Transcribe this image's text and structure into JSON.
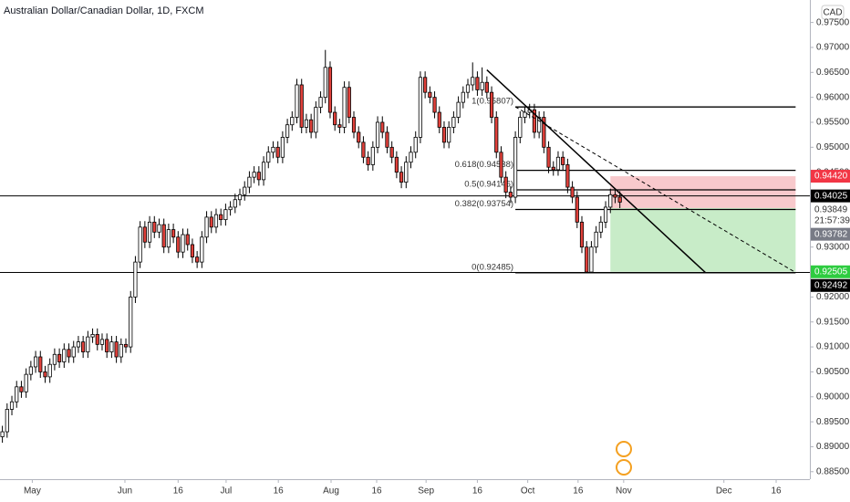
{
  "chart_data": {
    "type": "candlestick",
    "title": "Australian Dollar/Canadian Dollar, 1D, FXCM",
    "currency": "CAD",
    "open": [
      0.892,
      0.893,
      0.8975,
      0.899,
      0.902,
      0.901,
      0.9045,
      0.906,
      0.908,
      0.905,
      0.904,
      0.9065,
      0.9085,
      0.907,
      0.9095,
      0.908,
      0.91,
      0.911,
      0.909,
      0.912,
      0.9125,
      0.9105,
      0.9115,
      0.909,
      0.911,
      0.908,
      0.9105,
      0.91,
      0.92,
      0.927,
      0.934,
      0.931,
      0.935,
      0.933,
      0.9345,
      0.93,
      0.9335,
      0.932,
      0.929,
      0.9325,
      0.9305,
      0.928,
      0.927,
      0.932,
      0.936,
      0.934,
      0.9365,
      0.9355,
      0.9375,
      0.938,
      0.9395,
      0.9405,
      0.942,
      0.944,
      0.945,
      0.9435,
      0.947,
      0.949,
      0.95,
      0.948,
      0.952,
      0.9545,
      0.956,
      0.9625,
      0.954,
      0.9555,
      0.953,
      0.958,
      0.96,
      0.966,
      0.957,
      0.9545,
      0.954,
      0.962,
      0.956,
      0.953,
      0.951,
      0.948,
      0.9465,
      0.95,
      0.955,
      0.953,
      0.95,
      0.948,
      0.945,
      0.943,
      0.947,
      0.949,
      0.952,
      0.964,
      0.961,
      0.96,
      0.957,
      0.954,
      0.951,
      0.954,
      0.956,
      0.959,
      0.961,
      0.9625,
      0.964,
      0.9615,
      0.963,
      0.961,
      0.956,
      0.949,
      0.944,
      0.941,
      0.94,
      0.952,
      0.956,
      0.957,
      0.9575,
      0.953,
      0.956,
      0.95,
      0.946,
      0.9455,
      0.948,
      0.9465,
      0.942,
      0.94,
      0.935,
      0.93,
      0.925,
      0.93,
      0.933,
      0.935,
      0.938,
      0.9405,
      0.94
    ],
    "high": [
      0.8942,
      0.8987,
      0.9002,
      0.9032,
      0.9032,
      0.9057,
      0.9072,
      0.9092,
      0.9092,
      0.9062,
      0.9077,
      0.9097,
      0.9097,
      0.9107,
      0.9107,
      0.9112,
      0.9122,
      0.9122,
      0.9132,
      0.9137,
      0.9137,
      0.9127,
      0.9127,
      0.9122,
      0.9122,
      0.9117,
      0.9117,
      0.9212,
      0.9282,
      0.9352,
      0.9352,
      0.9362,
      0.9362,
      0.9357,
      0.9357,
      0.9347,
      0.9347,
      0.9332,
      0.9337,
      0.9337,
      0.9317,
      0.9292,
      0.9332,
      0.9372,
      0.9372,
      0.9377,
      0.9377,
      0.9387,
      0.9392,
      0.9407,
      0.9417,
      0.9432,
      0.9452,
      0.9462,
      0.9462,
      0.9482,
      0.9502,
      0.9512,
      0.9512,
      0.9532,
      0.9557,
      0.9572,
      0.9637,
      0.9637,
      0.9567,
      0.9567,
      0.9592,
      0.9612,
      0.9695,
      0.9672,
      0.9582,
      0.9557,
      0.9632,
      0.9632,
      0.9572,
      0.9542,
      0.9522,
      0.9492,
      0.9512,
      0.9562,
      0.9562,
      0.9542,
      0.9512,
      0.9492,
      0.9462,
      0.9482,
      0.9502,
      0.9532,
      0.9652,
      0.9652,
      0.9622,
      0.9612,
      0.9582,
      0.9552,
      0.9552,
      0.9572,
      0.9602,
      0.9622,
      0.9637,
      0.967,
      0.9652,
      0.966,
      0.9642,
      0.9622,
      0.9572,
      0.9502,
      0.9452,
      0.9422,
      0.9532,
      0.9572,
      0.9582,
      0.9587,
      0.9587,
      0.9572,
      0.9572,
      0.9512,
      0.9472,
      0.9492,
      0.9492,
      0.9477,
      0.9432,
      0.9412,
      0.9362,
      0.9312,
      0.9312,
      0.9342,
      0.9362,
      0.9392,
      0.9417,
      0.9417,
      0.9412
    ],
    "low": [
      0.8908,
      0.8918,
      0.8963,
      0.8978,
      0.8998,
      0.8998,
      0.9033,
      0.9048,
      0.9038,
      0.9028,
      0.9028,
      0.9053,
      0.9058,
      0.9058,
      0.9068,
      0.9068,
      0.9088,
      0.9078,
      0.9078,
      0.9108,
      0.9093,
      0.9093,
      0.9078,
      0.9078,
      0.9068,
      0.9068,
      0.9088,
      0.9088,
      0.9188,
      0.9258,
      0.9298,
      0.9298,
      0.9318,
      0.9318,
      0.9288,
      0.9288,
      0.9308,
      0.9278,
      0.9278,
      0.9293,
      0.9268,
      0.9258,
      0.9258,
      0.9308,
      0.9328,
      0.9328,
      0.9343,
      0.9343,
      0.9363,
      0.9368,
      0.9383,
      0.9393,
      0.9408,
      0.9428,
      0.9423,
      0.9423,
      0.9458,
      0.9478,
      0.9468,
      0.9468,
      0.9508,
      0.9533,
      0.9548,
      0.9528,
      0.9528,
      0.9518,
      0.9518,
      0.9568,
      0.9588,
      0.9558,
      0.9533,
      0.9528,
      0.9528,
      0.9548,
      0.9518,
      0.9498,
      0.9468,
      0.9453,
      0.9453,
      0.9488,
      0.9518,
      0.9488,
      0.9468,
      0.9438,
      0.9418,
      0.9418,
      0.9458,
      0.9478,
      0.9508,
      0.9598,
      0.9588,
      0.9558,
      0.9528,
      0.9498,
      0.9498,
      0.9528,
      0.9548,
      0.9578,
      0.9598,
      0.9613,
      0.9603,
      0.9603,
      0.9598,
      0.9548,
      0.9478,
      0.9428,
      0.9398,
      0.9388,
      0.9388,
      0.9508,
      0.9548,
      0.9558,
      0.9518,
      0.9518,
      0.9488,
      0.9448,
      0.9443,
      0.9443,
      0.9453,
      0.9408,
      0.9388,
      0.9338,
      0.9288,
      0.9249,
      0.9249,
      0.9288,
      0.9318,
      0.9338,
      0.9368,
      0.9388,
      0.9378
    ],
    "close": [
      0.893,
      0.8975,
      0.899,
      0.902,
      0.901,
      0.9045,
      0.906,
      0.908,
      0.905,
      0.904,
      0.9065,
      0.9085,
      0.907,
      0.9095,
      0.908,
      0.91,
      0.911,
      0.909,
      0.912,
      0.9125,
      0.9105,
      0.9115,
      0.909,
      0.911,
      0.908,
      0.9105,
      0.91,
      0.92,
      0.927,
      0.934,
      0.931,
      0.935,
      0.933,
      0.9345,
      0.93,
      0.9335,
      0.932,
      0.929,
      0.9325,
      0.9305,
      0.928,
      0.927,
      0.932,
      0.936,
      0.934,
      0.9365,
      0.9355,
      0.9375,
      0.938,
      0.9395,
      0.9405,
      0.942,
      0.944,
      0.945,
      0.9435,
      0.947,
      0.949,
      0.95,
      0.948,
      0.952,
      0.9545,
      0.956,
      0.9625,
      0.954,
      0.9555,
      0.953,
      0.958,
      0.96,
      0.966,
      0.957,
      0.9545,
      0.954,
      0.962,
      0.956,
      0.953,
      0.951,
      0.948,
      0.9465,
      0.95,
      0.955,
      0.953,
      0.95,
      0.948,
      0.945,
      0.943,
      0.947,
      0.949,
      0.952,
      0.964,
      0.961,
      0.96,
      0.957,
      0.954,
      0.951,
      0.954,
      0.956,
      0.959,
      0.961,
      0.9625,
      0.964,
      0.9615,
      0.963,
      0.961,
      0.956,
      0.949,
      0.944,
      0.941,
      0.94,
      0.952,
      0.956,
      0.957,
      0.9575,
      0.953,
      0.956,
      0.95,
      0.946,
      0.9455,
      0.948,
      0.9465,
      0.942,
      0.94,
      0.935,
      0.93,
      0.925,
      0.93,
      0.933,
      0.935,
      0.938,
      0.9405,
      0.94,
      0.939
    ],
    "up_color": "#ffffff",
    "down_color": "#e0403a",
    "xlim": [
      -0.5,
      170
    ],
    "xticks": [
      {
        "value": 6.3,
        "label": "May"
      },
      {
        "value": 25.8,
        "label": "Jun"
      },
      {
        "value": 37,
        "label": "16"
      },
      {
        "value": 47.1,
        "label": "Jul"
      },
      {
        "value": 58.1,
        "label": "16"
      },
      {
        "value": 69.2,
        "label": "Aug"
      },
      {
        "value": 78.8,
        "label": "16"
      },
      {
        "value": 89.2,
        "label": "Sep"
      },
      {
        "value": 100,
        "label": "16"
      },
      {
        "value": 110.6,
        "label": "Oct"
      },
      {
        "value": 121.2,
        "label": "16"
      },
      {
        "value": 130.8,
        "label": "Nov"
      },
      {
        "value": 151.9,
        "label": "Dec"
      },
      {
        "value": 162.9,
        "label": "16"
      }
    ],
    "ylim": [
      0.8835,
      0.9795
    ],
    "yticks": [
      {
        "value": 0.885,
        "label": "0.88500"
      },
      {
        "value": 0.89,
        "label": "0.89000"
      },
      {
        "value": 0.895,
        "label": "0.89500"
      },
      {
        "value": 0.9,
        "label": "0.90000"
      },
      {
        "value": 0.905,
        "label": "0.90500"
      },
      {
        "value": 0.91,
        "label": "0.91000"
      },
      {
        "value": 0.915,
        "label": "0.91500"
      },
      {
        "value": 0.92,
        "label": "0.92000"
      },
      {
        "value": 0.925,
        "label": "0.92500"
      },
      {
        "value": 0.93,
        "label": "0.93000"
      },
      {
        "value": 0.935,
        "label": "0.93500"
      },
      {
        "value": 0.94,
        "label": "0.94000"
      },
      {
        "value": 0.945,
        "label": "0.94500"
      },
      {
        "value": 0.95,
        "label": "0.95000"
      },
      {
        "value": 0.955,
        "label": "0.95500"
      },
      {
        "value": 0.96,
        "label": "0.96000"
      },
      {
        "value": 0.965,
        "label": "0.96500"
      },
      {
        "value": 0.97,
        "label": "0.97000"
      },
      {
        "value": 0.975,
        "label": "0.97500"
      }
    ],
    "price_labels": [
      {
        "value": 0.9442,
        "label": "0.94420",
        "color": "#f23645"
      },
      {
        "value": 0.94025,
        "label": "0.94025",
        "color": "#000000",
        "line": true
      },
      {
        "value": 0.93782,
        "label": "0.93782",
        "color": "#787b86"
      },
      {
        "value": 0.92505,
        "label": "0.92505",
        "color": "#2ecc40"
      },
      {
        "value": 0.92492,
        "label": "0.92492",
        "color": "#000000",
        "line": true
      }
    ],
    "last_price": {
      "value": 0.93849,
      "label": "0.93849"
    },
    "countdown": "21:57:39",
    "position": {
      "start": 128,
      "end": 167,
      "stop_color": "#f8c9cc",
      "target_color": "#c8ecc8"
    },
    "fib": {
      "start": 108,
      "end": 167,
      "levels": [
        {
          "label": "1(0.95807)",
          "value": 0.95807
        },
        {
          "label": "0.618(0.94538)",
          "value": 0.94538
        },
        {
          "label": "0.5(0.94146)",
          "value": 0.94146
        },
        {
          "label": "0.382(0.93754)",
          "value": 0.93754
        },
        {
          "label": "0(0.92485)",
          "value": 0.92485
        }
      ]
    },
    "trendlines": [
      {
        "style": "solid",
        "points": [
          [
            102,
            0.9655
          ],
          [
            148,
            0.9249
          ]
        ]
      },
      {
        "style": "dashed",
        "points": [
          [
            108,
            0.9581
          ],
          [
            167,
            0.9249
          ]
        ]
      }
    ]
  }
}
